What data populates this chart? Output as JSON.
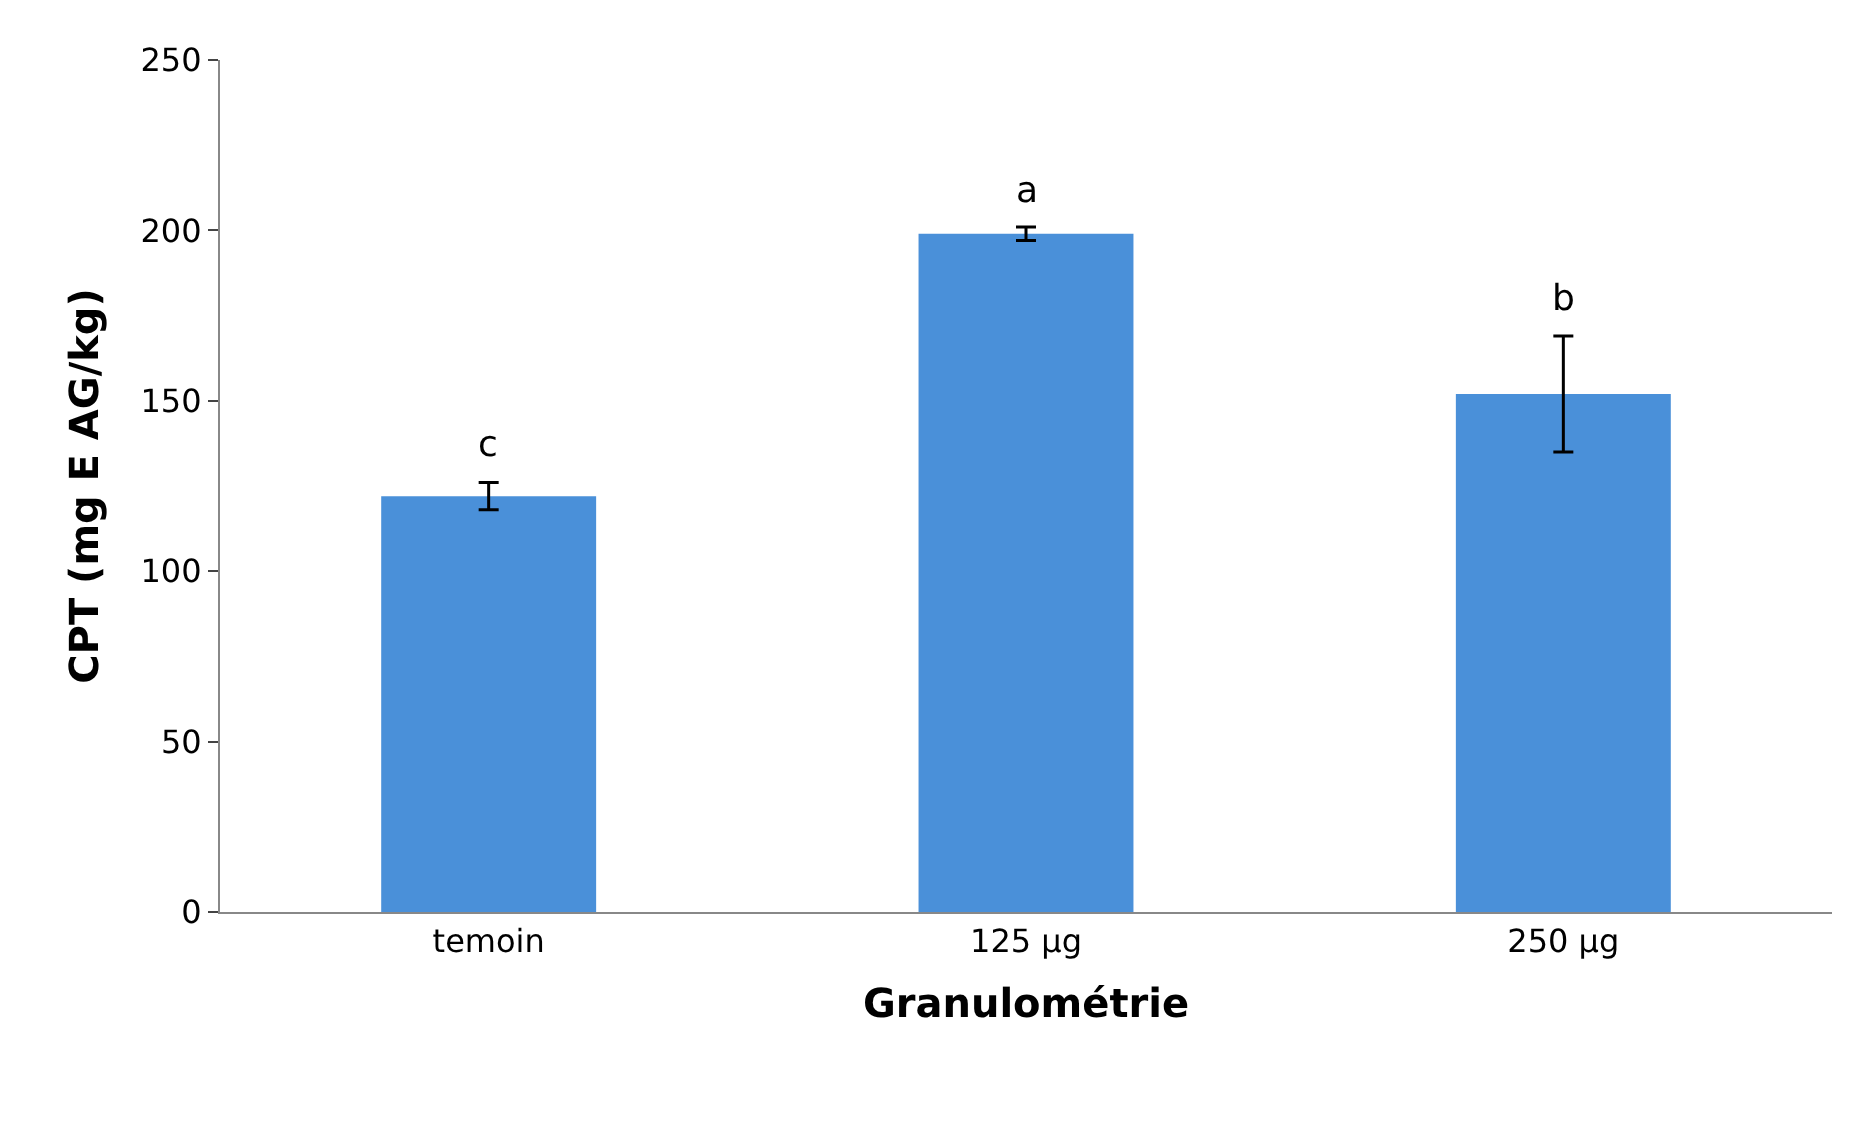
{
  "chart_data": {
    "type": "bar",
    "xlabel": "Granulométrie",
    "ylabel": "CPT (mg E AG/kg)",
    "categories": [
      "temoin",
      "125 µg",
      "250 µg"
    ],
    "values": [
      122,
      199,
      152
    ],
    "errors": [
      4,
      2,
      17
    ],
    "color": "#4a90d9",
    "ylim": [
      0,
      250
    ],
    "yticks": [
      0,
      50,
      100,
      150,
      200,
      250
    ],
    "annotations": [
      "c",
      "a",
      "b"
    ]
  }
}
